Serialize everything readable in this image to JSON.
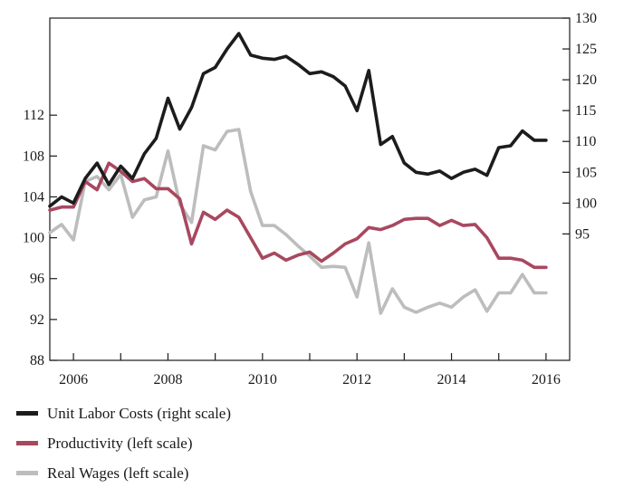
{
  "chart_data": {
    "type": "line",
    "title": "",
    "xlabel": "",
    "ylabel": "",
    "x_ticks": [
      "2006",
      "2008",
      "2010",
      "2012",
      "2014",
      "2016"
    ],
    "x_range": [
      2005.5,
      2016.5
    ],
    "y_left": {
      "ticks": [
        88,
        92,
        96,
        100,
        104,
        108,
        112
      ],
      "ylim": [
        88,
        121.5
      ]
    },
    "y_right": {
      "ticks": [
        95,
        100,
        105,
        110,
        115,
        120,
        125,
        130
      ],
      "ylim": [
        74.5,
        130
      ]
    },
    "grid": false,
    "legend_position": "bottom-left",
    "series": [
      {
        "name": "Unit Labor Costs (right scale)",
        "axis": "right",
        "color": "#1c1c1c",
        "x": [
          2005.5,
          2005.75,
          2006,
          2006.25,
          2006.5,
          2006.75,
          2007,
          2007.25,
          2007.5,
          2007.75,
          2008,
          2008.25,
          2008.5,
          2008.75,
          2009,
          2009.25,
          2009.5,
          2009.75,
          2010,
          2010.25,
          2010.5,
          2010.75,
          2011,
          2011.25,
          2011.5,
          2011.75,
          2012,
          2012.25,
          2012.5,
          2012.75,
          2013,
          2013.25,
          2013.5,
          2013.75,
          2014,
          2014.25,
          2014.5,
          2014.75,
          2015,
          2015.25,
          2015.5,
          2015.75,
          2016
        ],
        "values": [
          99.5,
          101,
          100,
          104,
          106.5,
          103,
          106,
          104,
          108,
          110.5,
          117,
          112,
          115.5,
          121,
          122,
          125,
          127.5,
          124,
          123.5,
          123.3,
          123.8,
          122.5,
          121,
          121.3,
          120.5,
          119,
          115,
          121.5,
          109.5,
          110.8,
          106.5,
          105,
          104.7,
          105.2,
          104,
          105,
          105.5,
          104.5,
          109,
          109.3,
          111.7,
          110.2,
          110.2
        ]
      },
      {
        "name": "Productivity (left scale)",
        "axis": "left",
        "color": "#a8485f",
        "x": [
          2005.5,
          2005.75,
          2006,
          2006.25,
          2006.5,
          2006.75,
          2007,
          2007.25,
          2007.5,
          2007.75,
          2008,
          2008.25,
          2008.5,
          2008.75,
          2009,
          2009.25,
          2009.5,
          2009.75,
          2010,
          2010.25,
          2010.5,
          2010.75,
          2011,
          2011.25,
          2011.5,
          2011.75,
          2012,
          2012.25,
          2012.5,
          2012.75,
          2013,
          2013.25,
          2013.5,
          2013.75,
          2014,
          2014.25,
          2014.5,
          2014.75,
          2015,
          2015.25,
          2015.5,
          2015.75,
          2016
        ],
        "values": [
          102.7,
          103,
          103,
          105.5,
          104.7,
          107.3,
          106.5,
          105.5,
          105.8,
          104.8,
          104.8,
          103.8,
          99.4,
          102.5,
          101.8,
          102.7,
          102,
          100,
          98,
          98.5,
          97.8,
          98.3,
          98.6,
          97.7,
          98.5,
          99.4,
          99.9,
          101,
          100.8,
          101.2,
          101.8,
          101.9,
          101.9,
          101.2,
          101.7,
          101.2,
          101.3,
          100,
          98,
          98,
          97.8,
          97.1,
          97.1
        ]
      },
      {
        "name": "Real Wages (left scale)",
        "axis": "left",
        "color": "#bdbdbd",
        "x": [
          2005.5,
          2005.75,
          2006,
          2006.25,
          2006.5,
          2006.75,
          2007,
          2007.25,
          2007.5,
          2007.75,
          2008,
          2008.25,
          2008.5,
          2008.75,
          2009,
          2009.25,
          2009.5,
          2009.75,
          2010,
          2010.25,
          2010.5,
          2010.75,
          2011,
          2011.25,
          2011.5,
          2011.75,
          2012,
          2012.25,
          2012.5,
          2012.75,
          2013,
          2013.25,
          2013.5,
          2013.75,
          2014,
          2014.25,
          2014.5,
          2014.75,
          2015,
          2015.25,
          2015.5,
          2015.75,
          2016
        ],
        "values": [
          100.5,
          101.3,
          99.8,
          105.5,
          106,
          104.7,
          106.2,
          102,
          103.7,
          104,
          108.5,
          103.3,
          101.5,
          109,
          108.6,
          110.4,
          110.6,
          104.5,
          101.2,
          101.2,
          100.3,
          99.2,
          98.2,
          97.1,
          97.2,
          97.1,
          94.2,
          99.5,
          92.6,
          95,
          93.2,
          92.7,
          93.2,
          93.6,
          93.2,
          94.2,
          94.9,
          92.8,
          94.6,
          94.6,
          96.4,
          94.6,
          94.6
        ]
      }
    ]
  }
}
